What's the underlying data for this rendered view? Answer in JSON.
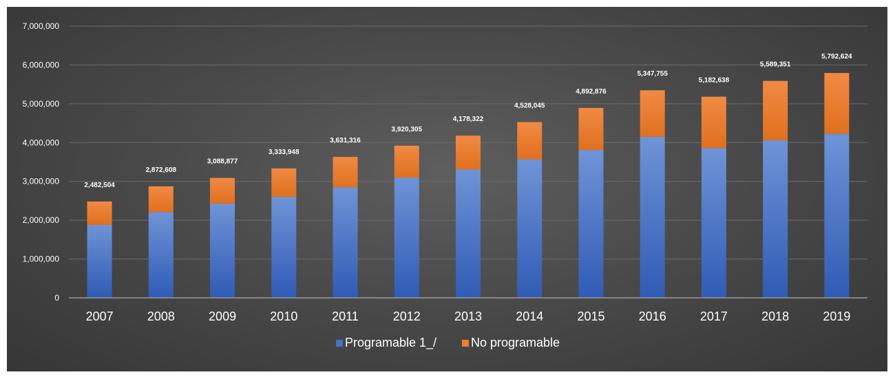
{
  "chart_data": {
    "type": "bar",
    "stacked": true,
    "categories": [
      "2007",
      "2008",
      "2009",
      "2010",
      "2011",
      "2012",
      "2013",
      "2014",
      "2015",
      "2016",
      "2017",
      "2018",
      "2019"
    ],
    "series": [
      {
        "name": "Programable 1_/",
        "color": "#4472c4",
        "values": [
          1880000,
          2210000,
          2430000,
          2600000,
          2850000,
          3100000,
          3310000,
          3570000,
          3810000,
          4150000,
          3860000,
          4060000,
          4230000
        ]
      },
      {
        "name": "No programable",
        "color": "#ed7d31",
        "values": [
          602504,
          662608,
          658877,
          733948,
          781316,
          820305,
          868322,
          958045,
          1082876,
          1197755,
          1322638,
          1529351,
          1562624
        ]
      }
    ],
    "totals": [
      2482504,
      2872608,
      3088877,
      3333948,
      3631316,
      3920305,
      4178322,
      4528045,
      4892876,
      5347755,
      5182638,
      5589351,
      5792624
    ],
    "total_labels": [
      "2,482,504",
      "2,872,608",
      "3,088,877",
      "3,333,948",
      "3,631,316",
      "3,920,305",
      "4,178,322",
      "4,528,045",
      "4,892,876",
      "5,347,755",
      "5,182,638",
      "5,589,351",
      "5,792,624"
    ],
    "yticks": [
      0,
      1000000,
      2000000,
      3000000,
      4000000,
      5000000,
      6000000,
      7000000
    ],
    "ytick_labels": [
      "0",
      "1,000,000",
      "2,000,000",
      "3,000,000",
      "4,000,000",
      "5,000,000",
      "6,000,000",
      "7,000,000"
    ],
    "ylim": [
      0,
      7000000
    ],
    "title": "",
    "xlabel": "",
    "ylabel": "",
    "grid": true,
    "legend_position": "bottom-center"
  }
}
